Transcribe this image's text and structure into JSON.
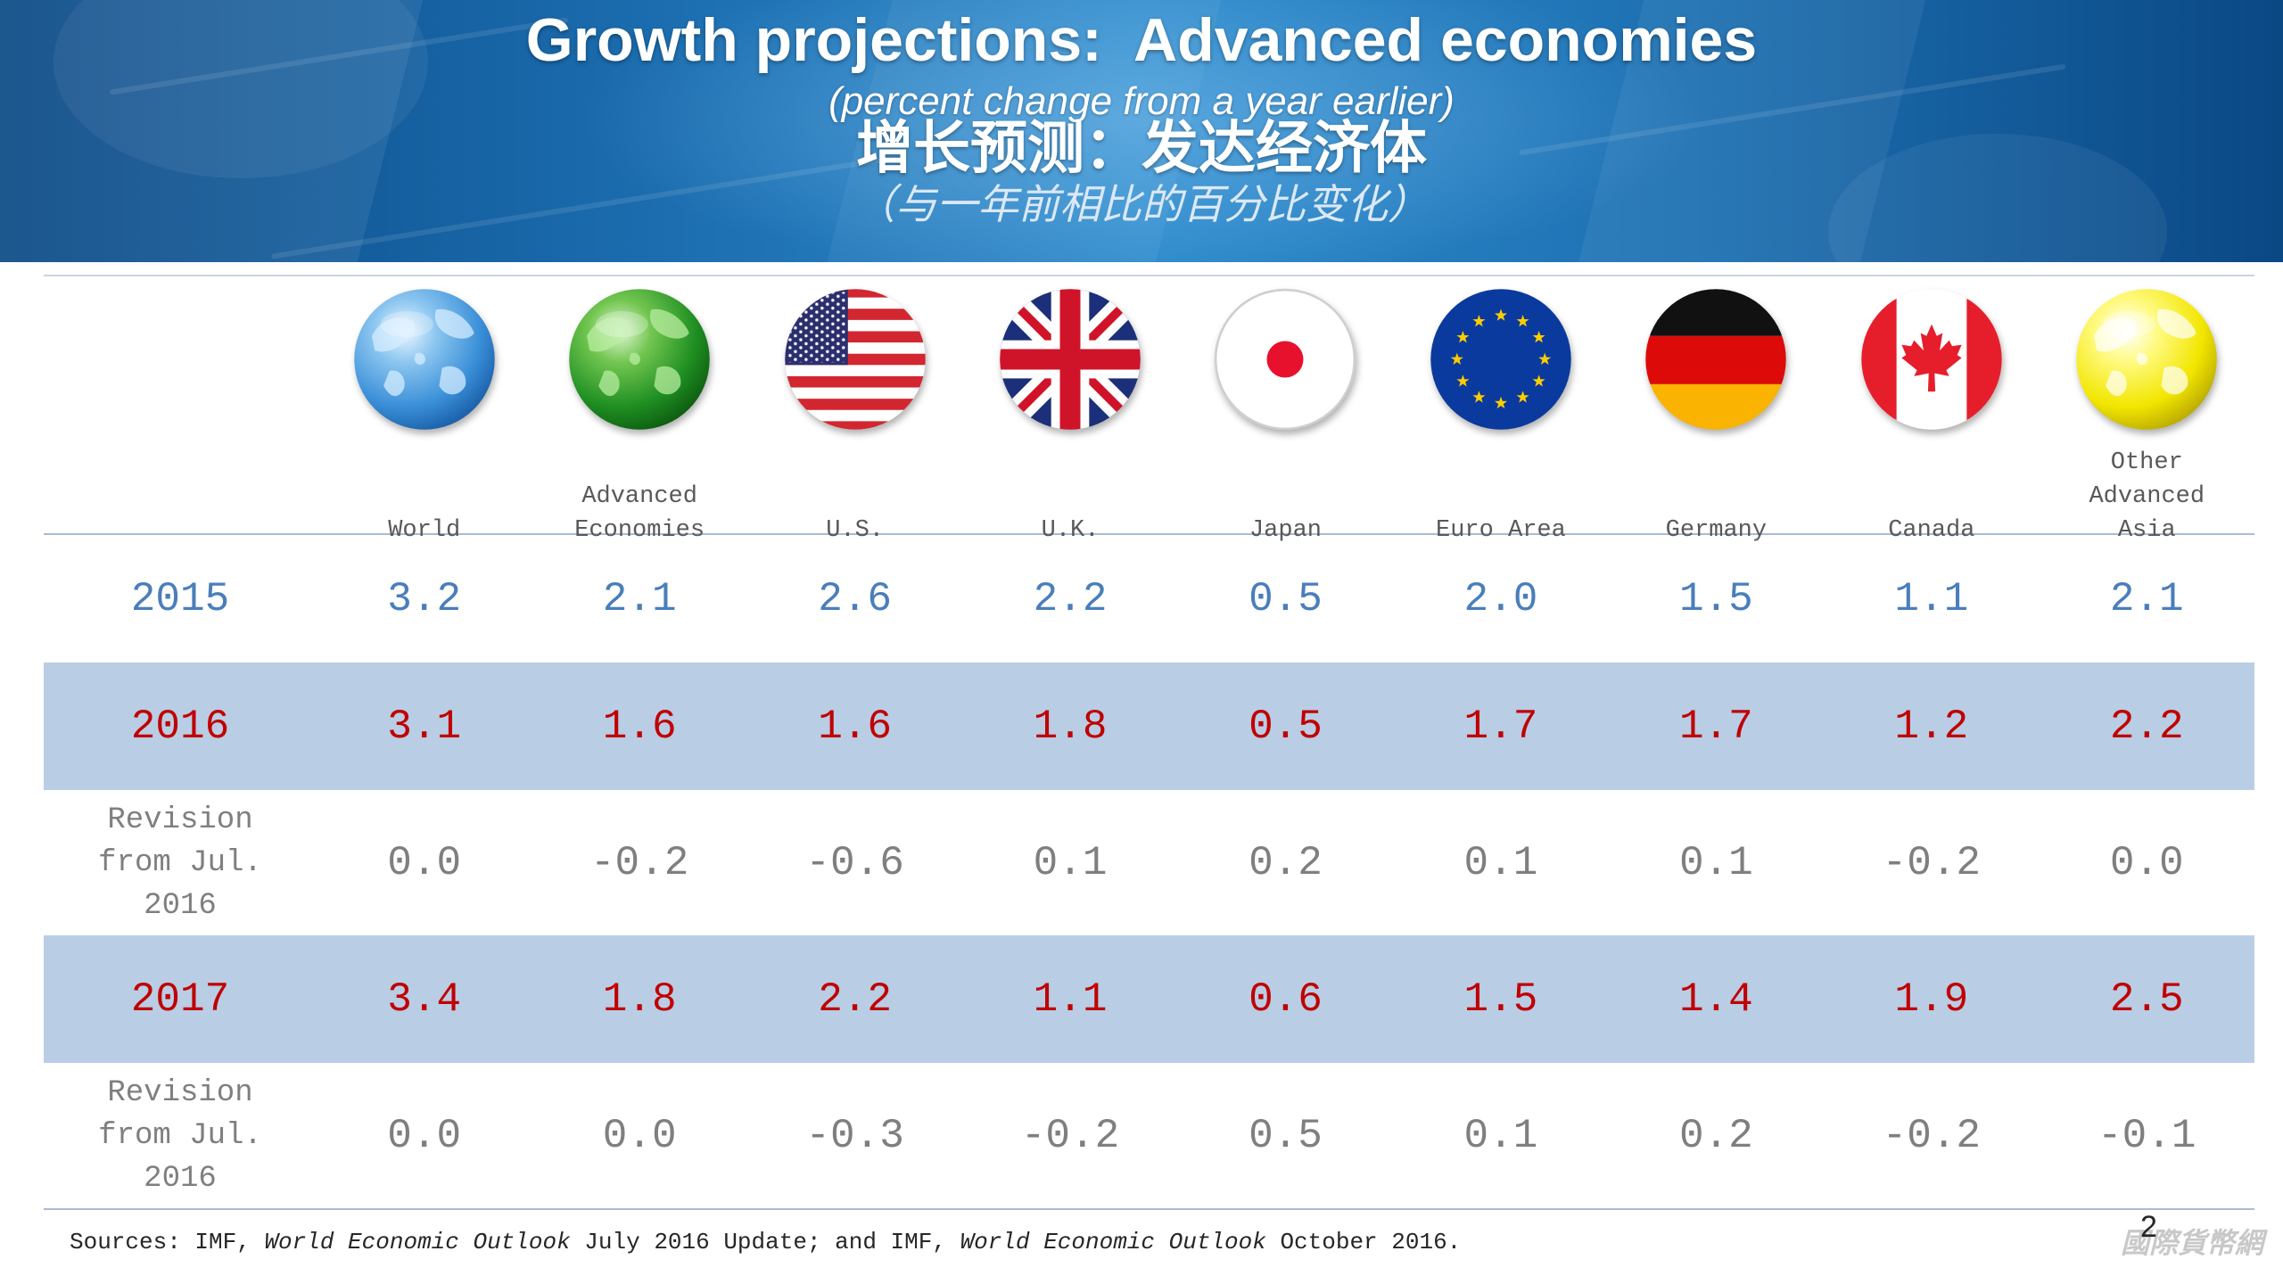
{
  "chart_data": {
    "type": "table",
    "title": "Growth projections:  Advanced economies",
    "subtitle": "(percent change from a year earlier)",
    "title_zh": "增长预测：发达经济体",
    "subtitle_zh": "（与一年前相比的百分比变化）",
    "columns": [
      {
        "label": "World",
        "icon": "world-globe-icon"
      },
      {
        "label": "Advanced\nEconomies",
        "icon": "advanced-economies-globe-icon"
      },
      {
        "label": "U.S.",
        "icon": "us-flag-icon"
      },
      {
        "label": "U.K.",
        "icon": "uk-flag-icon"
      },
      {
        "label": "Japan",
        "icon": "japan-flag-icon"
      },
      {
        "label": "Euro Area",
        "icon": "eu-flag-icon"
      },
      {
        "label": "Germany",
        "icon": "germany-flag-icon"
      },
      {
        "label": "Canada",
        "icon": "canada-flag-icon"
      },
      {
        "label": "Other\nAdvanced\nAsia",
        "icon": "other-advanced-asia-globe-icon"
      }
    ],
    "rows": [
      {
        "label": "2015",
        "values": [
          "3.2",
          "2.1",
          "2.6",
          "2.2",
          "0.5",
          "2.0",
          "1.5",
          "1.1",
          "2.1"
        ]
      },
      {
        "label": "2016",
        "values": [
          "3.1",
          "1.6",
          "1.6",
          "1.8",
          "0.5",
          "1.7",
          "1.7",
          "1.2",
          "2.2"
        ]
      },
      {
        "label": "Revision\nfrom Jul.\n2016",
        "values": [
          "0.0",
          "-0.2",
          "-0.6",
          "0.1",
          "0.2",
          "0.1",
          "0.1",
          "-0.2",
          "0.0"
        ]
      },
      {
        "label": "2017",
        "values": [
          "3.4",
          "1.8",
          "2.2",
          "1.1",
          "0.6",
          "1.5",
          "1.4",
          "1.9",
          "2.5"
        ]
      },
      {
        "label": "Revision\nfrom Jul.\n2016",
        "values": [
          "0.0",
          "0.0",
          "-0.3",
          "-0.2",
          "0.5",
          "0.1",
          "0.2",
          "-0.2",
          "-0.1"
        ]
      }
    ]
  },
  "sources": {
    "prefix": "Sources: IMF, ",
    "publication_1": "World Economic Outlook",
    "middle": " July 2016 Update; and IMF, ",
    "publication_2": "World Economic Outlook",
    "suffix": " October 2016."
  },
  "page_number": "2",
  "watermark": "國際貨幣網",
  "colors": {
    "row_2015_text": "#4a7ebb",
    "row_2016_2017_text": "#c00000",
    "revision_text": "#7f7f7f",
    "column_label_text": "#595959",
    "highlight_row_bg": "#b9cde5",
    "banner_blue": "#1b6cae"
  }
}
